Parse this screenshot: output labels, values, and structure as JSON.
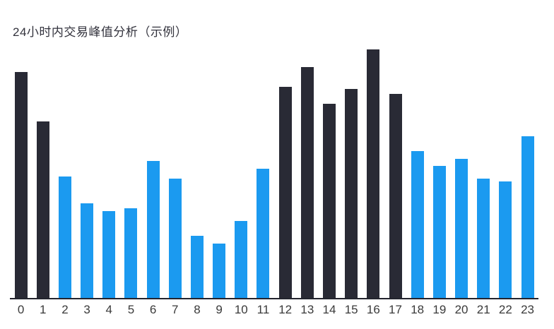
{
  "page": {
    "background": "#ffffff"
  },
  "chart_data": {
    "type": "bar",
    "title": "24小时内交易峰值分析（示例）",
    "title_color": "#32323C",
    "categories": [
      "0",
      "1",
      "2",
      "3",
      "4",
      "5",
      "6",
      "7",
      "8",
      "9",
      "10",
      "11",
      "12",
      "13",
      "14",
      "15",
      "16",
      "17",
      "18",
      "19",
      "20",
      "21",
      "22",
      "23"
    ],
    "values": [
      91,
      71,
      49,
      38,
      35,
      36,
      55,
      48,
      25,
      22,
      31,
      52,
      85,
      93,
      78,
      84,
      100,
      82,
      59,
      53,
      56,
      48,
      47,
      65
    ],
    "series_groups": [
      "dark",
      "dark",
      "blue",
      "blue",
      "blue",
      "blue",
      "blue",
      "blue",
      "blue",
      "blue",
      "blue",
      "blue",
      "dark",
      "dark",
      "dark",
      "dark",
      "dark",
      "dark",
      "blue",
      "blue",
      "blue",
      "blue",
      "blue",
      "blue"
    ],
    "colors": {
      "dark": "#292A35",
      "blue": "#1B9AF0"
    },
    "xlabel": "",
    "ylabel": "",
    "ylim": [
      0,
      102
    ],
    "grid": false,
    "legend": false,
    "y_axis_shown": false,
    "axis_line_color": "#23242E",
    "tick_label_color": "#3A3A3A"
  }
}
